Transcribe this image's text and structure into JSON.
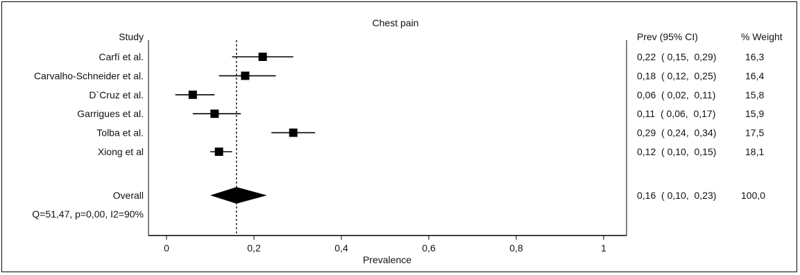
{
  "chart_data": {
    "type": "forest",
    "title": "Chest pain",
    "xlabel": "Prevalence",
    "xlim": [
      -0.04,
      1.04
    ],
    "xticks": [
      0,
      0.2,
      0.4,
      0.6,
      0.8,
      1
    ],
    "xtick_labels": [
      "0",
      "0,2",
      "0,4",
      "0,6",
      "0,8",
      "1"
    ],
    "reference_line": 0.16,
    "study_header": "Study",
    "ci_header": "Prev (95% CI)",
    "weight_header": "% Weight",
    "studies": [
      {
        "name": "Carfí et al.",
        "prev": 0.22,
        "lo": 0.15,
        "hi": 0.29,
        "ci_text": "0,22  ( 0,15,  0,29)",
        "weight": "16,3"
      },
      {
        "name": "Carvalho-Schneider et al.",
        "prev": 0.18,
        "lo": 0.12,
        "hi": 0.25,
        "ci_text": "0,18  ( 0,12,  0,25)",
        "weight": "16,4"
      },
      {
        "name": "D`Cruz et al.",
        "prev": 0.06,
        "lo": 0.02,
        "hi": 0.11,
        "ci_text": "0,06  ( 0,02,  0,11)",
        "weight": "15,8"
      },
      {
        "name": "Garrigues et al.",
        "prev": 0.11,
        "lo": 0.06,
        "hi": 0.17,
        "ci_text": "0,11  ( 0,06,  0,17)",
        "weight": "15,9"
      },
      {
        "name": "Tolba et al.",
        "prev": 0.29,
        "lo": 0.24,
        "hi": 0.34,
        "ci_text": "0,29  ( 0,24,  0,34)",
        "weight": "17,5"
      },
      {
        "name": "Xiong et al",
        "prev": 0.12,
        "lo": 0.1,
        "hi": 0.15,
        "ci_text": "0,12  ( 0,10,  0,15)",
        "weight": "18,1"
      }
    ],
    "overall": {
      "name": "Overall",
      "prev": 0.16,
      "lo": 0.1,
      "hi": 0.23,
      "ci_text": "0,16  ( 0,10,  0,23)",
      "weight": "100,0"
    },
    "heterogeneity": "Q=51,47, p=0,00, I2=90%"
  }
}
